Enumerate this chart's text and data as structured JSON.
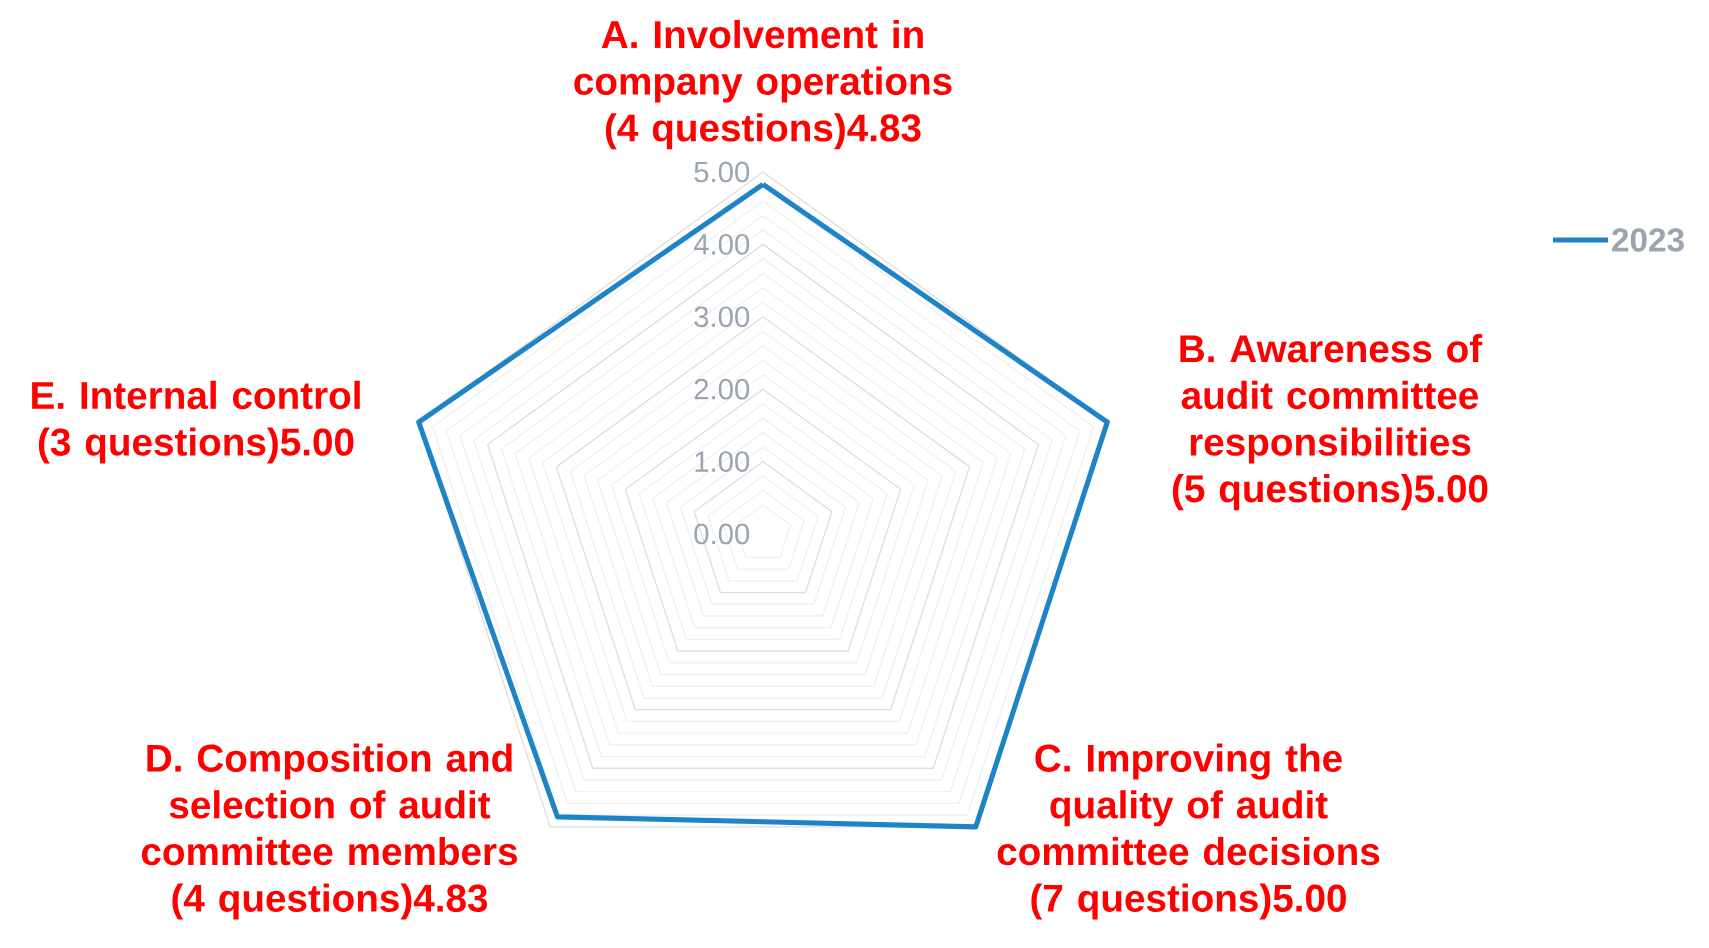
{
  "chart_data": {
    "type": "radar",
    "categories": [
      "A. Involvement in company operations (4 questions)4.83",
      "B. Awareness of audit committee responsibilities (5 questions)5.00",
      "C. Improving the quality of audit committee decisions (7 questions)5.00",
      "D. Composition and selection of audit committee members (4 questions)4.83",
      "E. Internal control (3 questions)5.00"
    ],
    "series": [
      {
        "name": "2023",
        "color": "#1f84c6",
        "values": [
          4.83,
          5.0,
          5.0,
          4.83,
          5.0
        ]
      }
    ],
    "ylim": [
      0,
      5
    ],
    "yticks": [
      {
        "value": 0,
        "label": "0.00"
      },
      {
        "value": 1,
        "label": "1.00"
      },
      {
        "value": 2,
        "label": "2.00"
      },
      {
        "value": 3,
        "label": "3.00"
      },
      {
        "value": 4,
        "label": "4.00"
      },
      {
        "value": 5,
        "label": "5.00"
      }
    ],
    "grid": true,
    "legend": "top right"
  }
}
